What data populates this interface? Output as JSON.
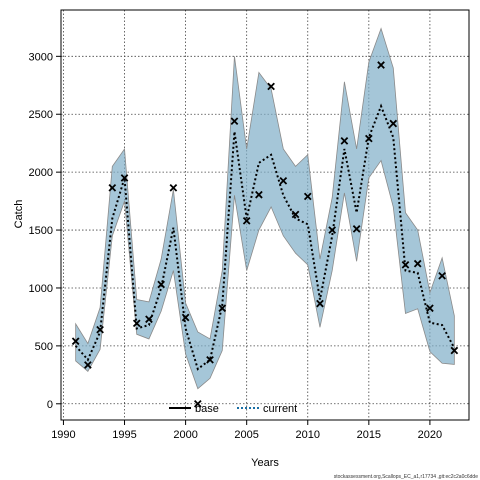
{
  "chart_data": {
    "type": "line",
    "xlabel": "Years",
    "ylabel": "Catch",
    "xlim": [
      1989.8,
      2023.2
    ],
    "ylim": [
      -140,
      3400
    ],
    "xticks": [
      1990,
      1995,
      2000,
      2005,
      2010,
      2015,
      2020
    ],
    "yticks": [
      0,
      500,
      1000,
      1500,
      2000,
      2500,
      3000
    ],
    "grid": true,
    "legend_position": "bottom-center",
    "footnote": "stockassessment.org,Scallops_EC_a1,r17734 ,git:ec2c2a0c6dde",
    "colors": {
      "band": "#7faec8",
      "band_edge": "#8a8a8a",
      "observed": "#000000",
      "estimate": "#000000",
      "legend_current": "#1a6ea3"
    },
    "legend": [
      {
        "name": "base",
        "style": "solid"
      },
      {
        "name": "current",
        "style": "dotted"
      }
    ],
    "observed": {
      "x": [
        1991,
        1992,
        1993,
        1994,
        1995,
        1996,
        1997,
        1998,
        1999,
        2000,
        2001,
        2002,
        2003,
        2004,
        2005,
        2006,
        2007,
        2008,
        2009,
        2010,
        2011,
        2012,
        2013,
        2014,
        2015,
        2016,
        2017,
        2018,
        2019,
        2020,
        2021,
        2022
      ],
      "y": [
        540,
        335,
        640,
        1865,
        1950,
        695,
        730,
        1030,
        1865,
        745,
        0,
        380,
        825,
        2440,
        1580,
        1805,
        2740,
        1925,
        1635,
        1790,
        865,
        1500,
        2270,
        1510,
        2290,
        2925,
        2420,
        1200,
        1210,
        825,
        1105,
        460
      ]
    },
    "estimate": {
      "x": [
        1991,
        1992,
        1993,
        1994,
        1995,
        1996,
        1997,
        1998,
        1999,
        2000,
        2001,
        2002,
        2003,
        2004,
        2005,
        2006,
        2007,
        2008,
        2009,
        2010,
        2011,
        2012,
        2013,
        2014,
        2015,
        2016,
        2017,
        2018,
        2019,
        2020,
        2021,
        2022
      ],
      "y": [
        500,
        380,
        620,
        1600,
        1950,
        650,
        680,
        1000,
        1520,
        650,
        300,
        380,
        850,
        2350,
        1600,
        2080,
        2150,
        1800,
        1600,
        1550,
        900,
        1450,
        2200,
        1650,
        2300,
        2570,
        2300,
        1150,
        1130,
        700,
        680,
        480
      ]
    },
    "band": {
      "x": [
        1991,
        1992,
        1993,
        1994,
        1995,
        1996,
        1997,
        1998,
        1999,
        2000,
        2001,
        2002,
        2003,
        2004,
        2005,
        2006,
        2007,
        2008,
        2009,
        2010,
        2011,
        2012,
        2013,
        2014,
        2015,
        2016,
        2017,
        2018,
        2019,
        2020,
        2021,
        2022
      ],
      "lower": [
        370,
        280,
        470,
        1450,
        1750,
        600,
        560,
        800,
        1150,
        430,
        130,
        220,
        460,
        1800,
        1150,
        1500,
        1700,
        1450,
        1300,
        1200,
        660,
        1150,
        1820,
        1230,
        1950,
        2100,
        1700,
        780,
        820,
        450,
        350,
        340
      ],
      "upper": [
        690,
        520,
        830,
        2050,
        2200,
        900,
        880,
        1250,
        1850,
        870,
        620,
        560,
        1150,
        3000,
        2200,
        2860,
        2720,
        2200,
        2050,
        2150,
        1250,
        1780,
        2780,
        2200,
        2950,
        3240,
        2900,
        1650,
        1500,
        960,
        1260,
        760
      ]
    }
  }
}
